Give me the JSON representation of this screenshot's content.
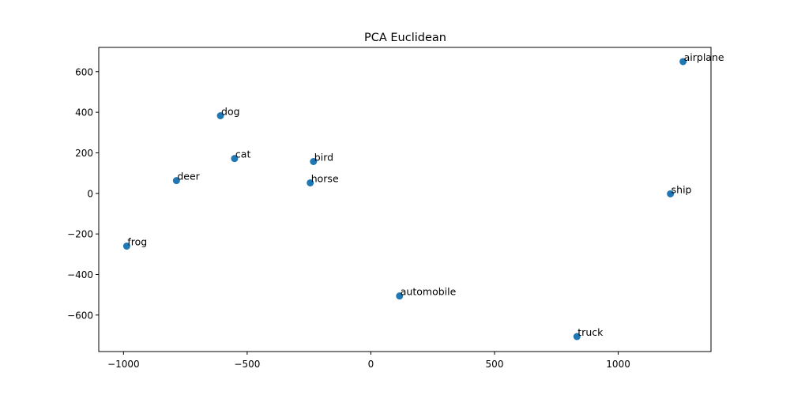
{
  "chart_data": {
    "type": "scatter",
    "title": "PCA Euclidean",
    "xlabel": "",
    "ylabel": "",
    "xlim": [
      -1100,
      1375
    ],
    "ylim": [
      -780,
      720
    ],
    "xticks": [
      -1000,
      -500,
      0,
      500,
      1000
    ],
    "yticks": [
      -600,
      -400,
      -200,
      0,
      200,
      400,
      600
    ],
    "grid": false,
    "point_color": "#1f77b4",
    "points": [
      {
        "label": "airplane",
        "x": 1262,
        "y": 650
      },
      {
        "label": "dog",
        "x": -608,
        "y": 383
      },
      {
        "label": "cat",
        "x": -551,
        "y": 172
      },
      {
        "label": "bird",
        "x": -232,
        "y": 157
      },
      {
        "label": "deer",
        "x": -786,
        "y": 63
      },
      {
        "label": "horse",
        "x": -245,
        "y": 52
      },
      {
        "label": "ship",
        "x": 1211,
        "y": -2
      },
      {
        "label": "frog",
        "x": -987,
        "y": -260
      },
      {
        "label": "automobile",
        "x": 116,
        "y": -506
      },
      {
        "label": "truck",
        "x": 833,
        "y": -706
      }
    ]
  }
}
